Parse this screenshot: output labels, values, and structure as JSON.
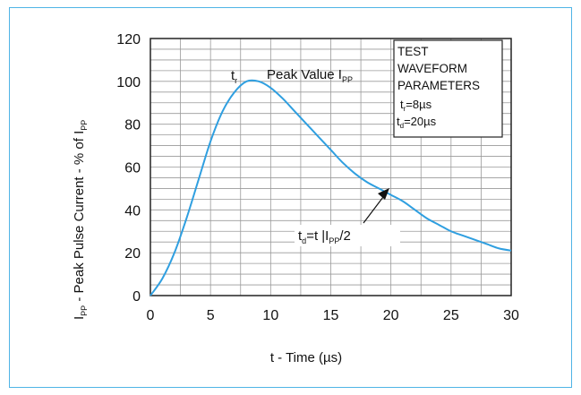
{
  "chart_data": {
    "type": "line",
    "xlabel": "t - Time (µs)",
    "ylabel": "I",
    "ylabel_sub": "PP",
    "ylabel_rest": " - Peak Pulse Current - % of I",
    "ylabel_sub2": "PP",
    "xlim": [
      0,
      30
    ],
    "ylim": [
      0,
      120
    ],
    "x_ticks": [
      0,
      5,
      10,
      15,
      20,
      25,
      30
    ],
    "y_ticks": [
      0,
      20,
      40,
      60,
      80,
      100,
      120
    ],
    "grid": true,
    "series": [
      {
        "color": "#2f9fe0",
        "x": [
          0,
          1,
          2,
          3,
          4,
          5,
          6,
          7,
          8,
          9,
          10,
          11,
          12,
          13,
          14,
          15,
          16,
          17,
          18,
          19,
          20,
          21,
          22,
          23,
          24,
          25,
          26,
          27,
          28,
          29,
          30
        ],
        "y": [
          0,
          8,
          20,
          36,
          54,
          72,
          86,
          95,
          100,
          100,
          97,
          92,
          86,
          80,
          74,
          68,
          62,
          57,
          53,
          50,
          47,
          44,
          40,
          36,
          33,
          30,
          28,
          26,
          24,
          22,
          21
        ]
      }
    ],
    "annotations": {
      "tr_main": "t",
      "tr_sub": "r",
      "peak_main": "Peak Value I",
      "peak_sub": "PP",
      "td_main1": "t",
      "td_sub1": "d",
      "td_main2": "=t |I",
      "td_sub2": "PP",
      "td_main3": "/2"
    },
    "legend_box": {
      "line1": "TEST",
      "line2": "WAVEFORM",
      "line3": "PARAMETERS",
      "p1_main": "t",
      "p1_sub": "r",
      "p1_rest": "=8µs",
      "p2_main": "t",
      "p2_sub": "d",
      "p2_rest": "=20µs"
    }
  }
}
